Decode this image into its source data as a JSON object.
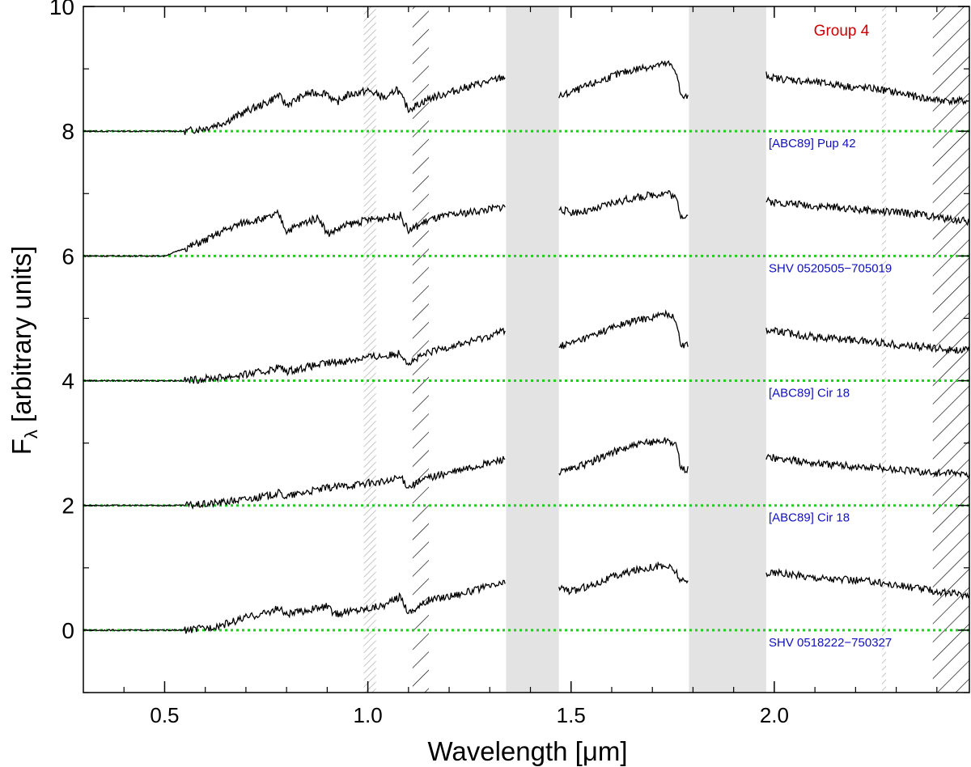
{
  "chart_data": {
    "type": "line",
    "title": "",
    "xlabel_main": "Wavelength [",
    "xlabel_unit": "μm",
    "xlabel_close": "]",
    "ylabel_main": "F",
    "ylabel_sub": "λ",
    "ylabel_rest": " [arbitrary units]",
    "xlim": [
      0.3,
      2.48
    ],
    "ylim": [
      -1.0,
      10.0
    ],
    "x_ticks": [
      0.5,
      1.0,
      1.5,
      2.0
    ],
    "x_tick_labels": [
      "0.5",
      "1.0",
      "1.5",
      "2.0"
    ],
    "y_ticks": [
      0,
      2,
      4,
      6,
      8,
      10
    ],
    "y_tick_labels": [
      "0",
      "2",
      "4",
      "6",
      "8",
      "10"
    ],
    "group_label": "Group 4",
    "group_label_color": "#cc0000",
    "star_label_color": "#1010c0",
    "zero_line_color": "#22cc22",
    "gap_band_color": "#e3e3e3",
    "gap_bands": [
      [
        1.34,
        1.47
      ],
      [
        1.79,
        1.98
      ]
    ],
    "hatch_regions_light": [
      [
        0.99,
        1.02
      ],
      [
        2.265,
        2.275
      ]
    ],
    "hatch_regions_dark": [
      [
        1.11,
        1.15
      ],
      [
        2.39,
        2.48
      ]
    ],
    "series": [
      {
        "name": "[ABC89] Pup 42",
        "offset": 8,
        "points": [
          [
            0.3,
            8.0
          ],
          [
            0.55,
            8.0
          ],
          [
            0.6,
            8.05
          ],
          [
            0.65,
            8.15
          ],
          [
            0.7,
            8.32
          ],
          [
            0.75,
            8.45
          ],
          [
            0.78,
            8.58
          ],
          [
            0.8,
            8.42
          ],
          [
            0.85,
            8.6
          ],
          [
            0.9,
            8.62
          ],
          [
            0.92,
            8.45
          ],
          [
            0.95,
            8.58
          ],
          [
            1.0,
            8.65
          ],
          [
            1.05,
            8.52
          ],
          [
            1.07,
            8.7
          ],
          [
            1.1,
            8.35
          ],
          [
            1.15,
            8.52
          ],
          [
            1.2,
            8.62
          ],
          [
            1.25,
            8.72
          ],
          [
            1.3,
            8.8
          ],
          [
            1.34,
            8.88
          ],
          [
            1.47,
            8.55
          ],
          [
            1.5,
            8.62
          ],
          [
            1.55,
            8.75
          ],
          [
            1.6,
            8.88
          ],
          [
            1.65,
            8.98
          ],
          [
            1.7,
            9.05
          ],
          [
            1.74,
            9.08
          ],
          [
            1.76,
            8.95
          ],
          [
            1.77,
            8.55
          ],
          [
            1.79,
            8.55
          ],
          [
            1.98,
            8.9
          ],
          [
            2.0,
            8.85
          ],
          [
            2.05,
            8.82
          ],
          [
            2.1,
            8.78
          ],
          [
            2.15,
            8.75
          ],
          [
            2.2,
            8.7
          ],
          [
            2.25,
            8.68
          ],
          [
            2.3,
            8.62
          ],
          [
            2.35,
            8.55
          ],
          [
            2.4,
            8.5
          ],
          [
            2.48,
            8.48
          ]
        ]
      },
      {
        "name": "SHV 0520505−705019",
        "offset": 6,
        "points": [
          [
            0.3,
            6.0
          ],
          [
            0.5,
            6.0
          ],
          [
            0.52,
            6.05
          ],
          [
            0.55,
            6.12
          ],
          [
            0.6,
            6.25
          ],
          [
            0.65,
            6.42
          ],
          [
            0.7,
            6.55
          ],
          [
            0.75,
            6.6
          ],
          [
            0.78,
            6.68
          ],
          [
            0.8,
            6.4
          ],
          [
            0.85,
            6.55
          ],
          [
            0.88,
            6.62
          ],
          [
            0.9,
            6.35
          ],
          [
            0.95,
            6.5
          ],
          [
            1.0,
            6.58
          ],
          [
            1.05,
            6.62
          ],
          [
            1.08,
            6.65
          ],
          [
            1.1,
            6.4
          ],
          [
            1.15,
            6.58
          ],
          [
            1.2,
            6.65
          ],
          [
            1.25,
            6.7
          ],
          [
            1.3,
            6.75
          ],
          [
            1.34,
            6.8
          ],
          [
            1.47,
            6.75
          ],
          [
            1.5,
            6.7
          ],
          [
            1.55,
            6.72
          ],
          [
            1.6,
            6.85
          ],
          [
            1.65,
            6.92
          ],
          [
            1.7,
            6.98
          ],
          [
            1.74,
            7.02
          ],
          [
            1.76,
            6.9
          ],
          [
            1.77,
            6.65
          ],
          [
            1.79,
            6.65
          ],
          [
            1.98,
            6.88
          ],
          [
            2.0,
            6.86
          ],
          [
            2.05,
            6.84
          ],
          [
            2.1,
            6.8
          ],
          [
            2.15,
            6.78
          ],
          [
            2.2,
            6.75
          ],
          [
            2.25,
            6.72
          ],
          [
            2.3,
            6.7
          ],
          [
            2.35,
            6.68
          ],
          [
            2.4,
            6.62
          ],
          [
            2.48,
            6.55
          ]
        ]
      },
      {
        "name": "[ABC89] Cir 18",
        "offset": 4,
        "points": [
          [
            0.3,
            4.0
          ],
          [
            0.55,
            4.0
          ],
          [
            0.6,
            4.03
          ],
          [
            0.65,
            4.06
          ],
          [
            0.7,
            4.1
          ],
          [
            0.75,
            4.15
          ],
          [
            0.78,
            4.22
          ],
          [
            0.8,
            4.15
          ],
          [
            0.85,
            4.22
          ],
          [
            0.9,
            4.28
          ],
          [
            0.95,
            4.32
          ],
          [
            1.0,
            4.38
          ],
          [
            1.05,
            4.4
          ],
          [
            1.08,
            4.45
          ],
          [
            1.1,
            4.28
          ],
          [
            1.15,
            4.45
          ],
          [
            1.2,
            4.55
          ],
          [
            1.25,
            4.62
          ],
          [
            1.3,
            4.72
          ],
          [
            1.34,
            4.82
          ],
          [
            1.47,
            4.55
          ],
          [
            1.5,
            4.6
          ],
          [
            1.55,
            4.72
          ],
          [
            1.6,
            4.85
          ],
          [
            1.65,
            4.95
          ],
          [
            1.7,
            5.02
          ],
          [
            1.74,
            5.08
          ],
          [
            1.76,
            4.95
          ],
          [
            1.77,
            4.58
          ],
          [
            1.79,
            4.58
          ],
          [
            1.98,
            4.82
          ],
          [
            2.0,
            4.8
          ],
          [
            2.05,
            4.75
          ],
          [
            2.1,
            4.7
          ],
          [
            2.15,
            4.68
          ],
          [
            2.2,
            4.65
          ],
          [
            2.25,
            4.62
          ],
          [
            2.3,
            4.58
          ],
          [
            2.35,
            4.55
          ],
          [
            2.4,
            4.52
          ],
          [
            2.48,
            4.48
          ]
        ]
      },
      {
        "name": "[ABC89] Cir 18",
        "offset": 2,
        "points": [
          [
            0.3,
            2.0
          ],
          [
            0.55,
            2.0
          ],
          [
            0.6,
            2.02
          ],
          [
            0.65,
            2.06
          ],
          [
            0.7,
            2.1
          ],
          [
            0.75,
            2.15
          ],
          [
            0.78,
            2.2
          ],
          [
            0.8,
            2.14
          ],
          [
            0.85,
            2.22
          ],
          [
            0.9,
            2.28
          ],
          [
            0.95,
            2.32
          ],
          [
            1.0,
            2.36
          ],
          [
            1.05,
            2.38
          ],
          [
            1.08,
            2.45
          ],
          [
            1.1,
            2.3
          ],
          [
            1.15,
            2.45
          ],
          [
            1.2,
            2.52
          ],
          [
            1.25,
            2.6
          ],
          [
            1.3,
            2.68
          ],
          [
            1.34,
            2.76
          ],
          [
            1.47,
            2.52
          ],
          [
            1.5,
            2.58
          ],
          [
            1.55,
            2.7
          ],
          [
            1.6,
            2.85
          ],
          [
            1.65,
            2.95
          ],
          [
            1.7,
            3.02
          ],
          [
            1.74,
            3.05
          ],
          [
            1.76,
            2.95
          ],
          [
            1.77,
            2.58
          ],
          [
            1.79,
            2.58
          ],
          [
            1.98,
            2.78
          ],
          [
            2.0,
            2.76
          ],
          [
            2.05,
            2.72
          ],
          [
            2.1,
            2.68
          ],
          [
            2.15,
            2.65
          ],
          [
            2.2,
            2.62
          ],
          [
            2.25,
            2.6
          ],
          [
            2.3,
            2.58
          ],
          [
            2.35,
            2.55
          ],
          [
            2.4,
            2.52
          ],
          [
            2.48,
            2.5
          ]
        ]
      },
      {
        "name": "SHV 0518222−750327",
        "offset": 0,
        "points": [
          [
            0.3,
            0.0
          ],
          [
            0.55,
            0.0
          ],
          [
            0.6,
            0.03
          ],
          [
            0.65,
            0.1
          ],
          [
            0.7,
            0.2
          ],
          [
            0.75,
            0.28
          ],
          [
            0.78,
            0.35
          ],
          [
            0.8,
            0.25
          ],
          [
            0.85,
            0.32
          ],
          [
            0.9,
            0.38
          ],
          [
            0.92,
            0.25
          ],
          [
            0.95,
            0.3
          ],
          [
            1.0,
            0.35
          ],
          [
            1.05,
            0.42
          ],
          [
            1.08,
            0.55
          ],
          [
            1.1,
            0.28
          ],
          [
            1.15,
            0.48
          ],
          [
            1.2,
            0.55
          ],
          [
            1.25,
            0.62
          ],
          [
            1.3,
            0.7
          ],
          [
            1.34,
            0.76
          ],
          [
            1.47,
            0.7
          ],
          [
            1.5,
            0.62
          ],
          [
            1.55,
            0.72
          ],
          [
            1.6,
            0.85
          ],
          [
            1.65,
            0.95
          ],
          [
            1.7,
            1.02
          ],
          [
            1.74,
            1.02
          ],
          [
            1.76,
            0.92
          ],
          [
            1.77,
            0.78
          ],
          [
            1.79,
            0.78
          ],
          [
            1.98,
            0.92
          ],
          [
            2.0,
            0.92
          ],
          [
            2.05,
            0.88
          ],
          [
            2.1,
            0.85
          ],
          [
            2.15,
            0.82
          ],
          [
            2.2,
            0.8
          ],
          [
            2.25,
            0.78
          ],
          [
            2.3,
            0.72
          ],
          [
            2.35,
            0.68
          ],
          [
            2.4,
            0.62
          ],
          [
            2.48,
            0.55
          ]
        ]
      }
    ]
  }
}
